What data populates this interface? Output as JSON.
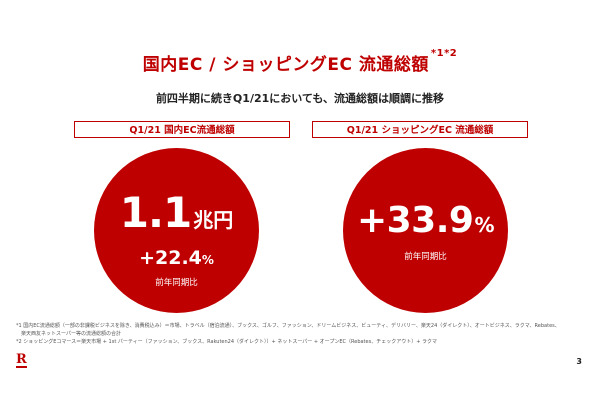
{
  "title": "国内EC / ショッピングEC 流通総額",
  "title_note": "*1*2",
  "subtitle": "前四半期に続きQ1/21においても、流通総額は順調に推移",
  "left_panel": {
    "label": "Q1/21 国内EC流通総額",
    "amount": "1.1",
    "unit": "兆円",
    "growth": "+22.4",
    "growth_unit": "%",
    "growth_caption": "前年同期比"
  },
  "right_panel": {
    "label": "Q1/21 ショッピングEC 流通総額",
    "growth": "+33.9",
    "growth_unit": "%",
    "growth_caption": "前年同期比"
  },
  "footnotes": [
    "*1 国内EC流通総額（一部の非課税ビジネスを除き、消費税込み）＝市場、トラベル（宿泊流通）、ブックス、ゴルフ、ファッション、ドリームビジネス、ビューティ、デリバリー、楽天24（ダイレクト）、オートビジネス、ラクマ、Rebates、",
    "　楽天西友ネットスーパー等の流通総額の合計",
    "*2 ショッピングEコマース＝楽天市場 + 1st パーティー（ファッション、ブックス、Rakuten24（ダイレクト））+ ネットスーパー + オープンEC（Rebates、チェックアウト）+ ラクマ"
  ],
  "logo_text": "R",
  "page_number": "3",
  "colors": {
    "accent": "#bf0000",
    "background": "#ffffff"
  }
}
